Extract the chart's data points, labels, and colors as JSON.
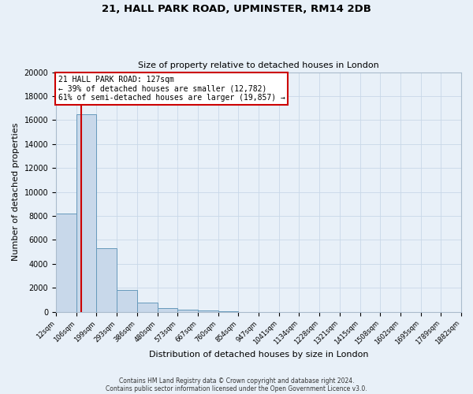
{
  "title1": "21, HALL PARK ROAD, UPMINSTER, RM14 2DB",
  "title2": "Size of property relative to detached houses in London",
  "xlabel": "Distribution of detached houses by size in London",
  "ylabel": "Number of detached properties",
  "bin_labels": [
    "12sqm",
    "106sqm",
    "199sqm",
    "293sqm",
    "386sqm",
    "480sqm",
    "573sqm",
    "667sqm",
    "760sqm",
    "854sqm",
    "947sqm",
    "1041sqm",
    "1134sqm",
    "1228sqm",
    "1321sqm",
    "1415sqm",
    "1508sqm",
    "1602sqm",
    "1695sqm",
    "1789sqm",
    "1882sqm"
  ],
  "bin_edges": [
    12,
    106,
    199,
    293,
    386,
    480,
    573,
    667,
    760,
    854,
    947,
    1041,
    1134,
    1228,
    1321,
    1415,
    1508,
    1602,
    1695,
    1789,
    1882
  ],
  "bar_heights": [
    8200,
    16500,
    5300,
    1800,
    800,
    300,
    150,
    100,
    60,
    0,
    0,
    0,
    0,
    0,
    0,
    0,
    0,
    0,
    0,
    0
  ],
  "bar_color": "#c8d8ea",
  "bar_edge_color": "#6699bb",
  "red_line_x": 127,
  "annotation_title": "21 HALL PARK ROAD: 127sqm",
  "annotation_line1": "← 39% of detached houses are smaller (12,782)",
  "annotation_line2": "61% of semi-detached houses are larger (19,857) →",
  "annotation_box_color": "#ffffff",
  "annotation_box_edge": "#cc0000",
  "red_line_color": "#cc0000",
  "ylim": [
    0,
    20000
  ],
  "yticks": [
    0,
    2000,
    4000,
    6000,
    8000,
    10000,
    12000,
    14000,
    16000,
    18000,
    20000
  ],
  "footer1": "Contains HM Land Registry data © Crown copyright and database right 2024.",
  "footer2": "Contains public sector information licensed under the Open Government Licence v3.0.",
  "grid_color": "#c8d8e8",
  "bg_color": "#e8f0f8"
}
